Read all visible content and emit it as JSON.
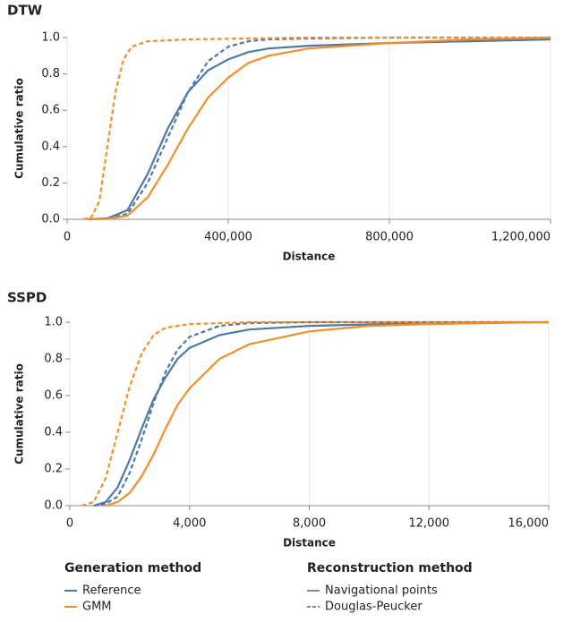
{
  "chart_data": [
    {
      "type": "line",
      "title": "DTW",
      "xlabel": "Distance",
      "ylabel": "Cumulative ratio",
      "xlim": [
        0,
        1200000
      ],
      "ylim": [
        0,
        1
      ],
      "xticks": [
        0,
        {
          "value": 400000,
          "label": "400,000"
        },
        {
          "value": 800000,
          "label": "800,000"
        },
        {
          "value": 1200000,
          "label": "1,200,000"
        }
      ],
      "yticks": [
        {
          "value": 0,
          "label": "0.0"
        },
        0.2,
        0.4,
        0.6,
        0.8,
        {
          "value": 1,
          "label": "1.0"
        }
      ],
      "grid": true,
      "series": [
        {
          "color": "#4e79a7",
          "dashed": false,
          "x": [
            50000,
            100000,
            150000,
            200000,
            250000,
            300000,
            350000,
            400000,
            450000,
            500000,
            600000,
            800000,
            1000000,
            1200000
          ],
          "values": [
            0,
            0.005,
            0.05,
            0.25,
            0.5,
            0.7,
            0.82,
            0.88,
            0.92,
            0.94,
            0.955,
            0.97,
            0.98,
            0.99
          ]
        },
        {
          "color": "#4e79a7",
          "dashed": true,
          "x": [
            50000,
            100000,
            150000,
            200000,
            250000,
            300000,
            350000,
            400000,
            450000,
            500000,
            600000,
            800000,
            1200000
          ],
          "values": [
            0,
            0.003,
            0.03,
            0.2,
            0.45,
            0.7,
            0.87,
            0.95,
            0.98,
            0.99,
            0.995,
            1,
            1
          ]
        },
        {
          "color": "#f28e2b",
          "dashed": false,
          "x": [
            50000,
            100000,
            150000,
            200000,
            250000,
            300000,
            350000,
            400000,
            450000,
            500000,
            600000,
            800000,
            1000000,
            1200000
          ],
          "values": [
            0,
            0.002,
            0.02,
            0.12,
            0.3,
            0.5,
            0.67,
            0.78,
            0.86,
            0.9,
            0.94,
            0.97,
            0.99,
            1
          ]
        },
        {
          "color": "#f28e2b",
          "dashed": true,
          "x": [
            40000,
            60000,
            80000,
            100000,
            120000,
            140000,
            160000,
            200000,
            300000,
            600000,
            1200000
          ],
          "values": [
            0,
            0.01,
            0.1,
            0.4,
            0.7,
            0.88,
            0.95,
            0.98,
            0.99,
            1,
            1
          ]
        }
      ]
    },
    {
      "type": "line",
      "title": "SSPD",
      "xlabel": "Distance",
      "ylabel": "Cumulative ratio",
      "xlim": [
        0,
        16000
      ],
      "ylim": [
        0,
        1
      ],
      "xticks": [
        0,
        {
          "value": 4000,
          "label": "4,000"
        },
        {
          "value": 8000,
          "label": "8,000"
        },
        {
          "value": 12000,
          "label": "12,000"
        },
        {
          "value": 16000,
          "label": "16,000"
        }
      ],
      "yticks": [
        {
          "value": 0,
          "label": "0.0"
        },
        0.2,
        0.4,
        0.6,
        0.8,
        {
          "value": 1,
          "label": "1.0"
        }
      ],
      "grid": true,
      "series": [
        {
          "color": "#4e79a7",
          "dashed": false,
          "x": [
            800,
            1200,
            1600,
            2000,
            2400,
            2800,
            3200,
            3600,
            4000,
            5000,
            6000,
            8000,
            12000,
            16000
          ],
          "values": [
            0,
            0.02,
            0.1,
            0.25,
            0.42,
            0.58,
            0.7,
            0.8,
            0.86,
            0.93,
            0.96,
            0.98,
            0.995,
            1
          ]
        },
        {
          "color": "#4e79a7",
          "dashed": true,
          "x": [
            800,
            1200,
            1600,
            2000,
            2400,
            2800,
            3200,
            3600,
            4000,
            5000,
            6000,
            8000,
            16000
          ],
          "values": [
            0,
            0.01,
            0.05,
            0.18,
            0.36,
            0.56,
            0.73,
            0.85,
            0.92,
            0.98,
            0.995,
            1,
            1
          ]
        },
        {
          "color": "#f28e2b",
          "dashed": false,
          "x": [
            1200,
            1600,
            2000,
            2400,
            2800,
            3200,
            3600,
            4000,
            5000,
            6000,
            8000,
            10000,
            12000,
            16000
          ],
          "values": [
            0,
            0.02,
            0.07,
            0.16,
            0.28,
            0.42,
            0.55,
            0.64,
            0.8,
            0.88,
            0.95,
            0.98,
            0.99,
            1
          ]
        },
        {
          "color": "#f28e2b",
          "dashed": true,
          "x": [
            400,
            800,
            1200,
            1600,
            2000,
            2400,
            2800,
            3200,
            4000,
            6000,
            16000
          ],
          "values": [
            0,
            0.02,
            0.15,
            0.4,
            0.65,
            0.83,
            0.93,
            0.97,
            0.99,
            1,
            1
          ]
        }
      ]
    }
  ],
  "legend": {
    "groups": [
      {
        "title": "Generation method",
        "entries": [
          {
            "name": "Reference",
            "color": "#4e79a7",
            "dashed": false
          },
          {
            "name": "GMM",
            "color": "#f28e2b",
            "dashed": false
          }
        ]
      },
      {
        "title": "Reconstruction method",
        "entries": [
          {
            "name": "Navigational points",
            "color": "#888888",
            "dashed": false
          },
          {
            "name": "Douglas-Peucker",
            "color": "#888888",
            "dashed": true
          }
        ]
      }
    ]
  }
}
